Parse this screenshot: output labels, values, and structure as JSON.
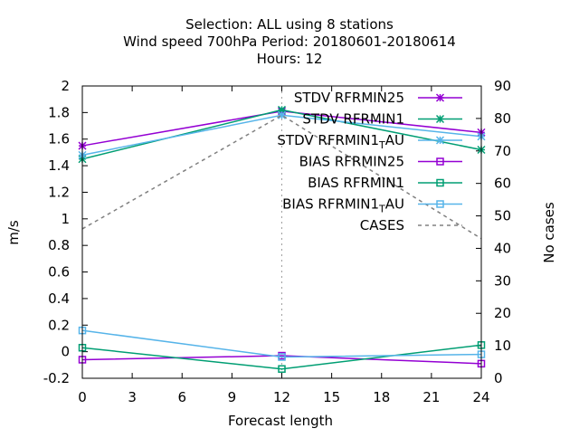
{
  "chart_data": {
    "type": "line",
    "title_lines": [
      "Selection: ALL using     8 stations",
      "Wind speed 700hPa   Period: 20180601-20180614",
      "Hours:  12"
    ],
    "xlabel": "Forecast length",
    "ylabel": "m/s",
    "y2label": "No cases",
    "x_ticks": [
      "0",
      "3",
      "6",
      "9",
      "12",
      "15",
      "18",
      "21",
      "24"
    ],
    "y_ticks": [
      "-0.2",
      "0",
      "0.2",
      "0.4",
      "0.6",
      "0.8",
      "1",
      "1.2",
      "1.4",
      "1.6",
      "1.8",
      "2"
    ],
    "y2_ticks": [
      "0",
      "10",
      "20",
      "30",
      "40",
      "50",
      "60",
      "70",
      "80",
      "90"
    ],
    "xlim": [
      0,
      24
    ],
    "ylim": [
      -0.2,
      2
    ],
    "y2lim": [
      0,
      90
    ],
    "grid": "vertical dashed at x=12",
    "legend_position": "top-right",
    "x": [
      0,
      12,
      24
    ],
    "series": [
      {
        "name": "STDV RFRMIN25",
        "name_parts": [
          "STDV RFRMIN25"
        ],
        "values": [
          1.55,
          1.81,
          1.65
        ],
        "color": "#9400d3",
        "marker": "star",
        "style": "solid"
      },
      {
        "name": "STDV RFRMIN1",
        "name_parts": [
          "STDV RFRMIN1"
        ],
        "values": [
          1.45,
          1.82,
          1.52
        ],
        "color": "#009e73",
        "marker": "star",
        "style": "solid"
      },
      {
        "name": "STDV RFRMIN1_T_AU",
        "name_parts": [
          "STDV RFRMIN1",
          "T",
          "AU"
        ],
        "values": [
          1.48,
          1.78,
          1.62
        ],
        "color": "#56b4e9",
        "marker": "star",
        "style": "solid"
      },
      {
        "name": "BIAS RFRMIN25",
        "name_parts": [
          "BIAS RFRMIN25"
        ],
        "values": [
          -0.06,
          -0.03,
          -0.09
        ],
        "color": "#9400d3",
        "marker": "square",
        "style": "solid"
      },
      {
        "name": "BIAS RFRMIN1",
        "name_parts": [
          "BIAS RFRMIN1"
        ],
        "values": [
          0.03,
          -0.13,
          0.05
        ],
        "color": "#009e73",
        "marker": "square",
        "style": "solid"
      },
      {
        "name": "BIAS RFRMIN1_T_AU",
        "name_parts": [
          "BIAS RFRMIN1",
          "T",
          "AU"
        ],
        "values": [
          0.16,
          -0.04,
          -0.02
        ],
        "color": "#56b4e9",
        "marker": "square",
        "style": "solid"
      },
      {
        "name": "CASES",
        "name_parts": [
          "CASES"
        ],
        "values": [
          46,
          81,
          43
        ],
        "axis": "right",
        "color": "#808080",
        "marker": "none",
        "style": "dashed"
      }
    ]
  }
}
